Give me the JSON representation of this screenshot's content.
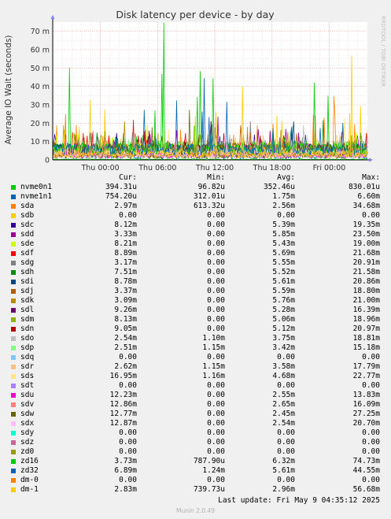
{
  "chart_data": {
    "type": "line",
    "title": "Disk latency per device - by day",
    "ylabel": "Average IO Wait (seconds)",
    "watermark": "RRDTOOL / TOBI OETIKER",
    "ylim": [
      0,
      75
    ],
    "y_ticks": [
      {
        "value": 0,
        "label": "0"
      },
      {
        "value": 10,
        "label": "10 m"
      },
      {
        "value": 20,
        "label": "20 m"
      },
      {
        "value": 30,
        "label": "30 m"
      },
      {
        "value": 40,
        "label": "40 m"
      },
      {
        "value": 50,
        "label": "50 m"
      },
      {
        "value": 60,
        "label": "60 m"
      },
      {
        "value": 70,
        "label": "70 m"
      }
    ],
    "x_ticks": [
      {
        "value": 5,
        "label": "Thu 00:00"
      },
      {
        "value": 11,
        "label": "Thu 06:00"
      },
      {
        "value": 17,
        "label": "Thu 12:00"
      },
      {
        "value": 23,
        "label": "Thu 18:00"
      },
      {
        "value": 29,
        "label": "Fri 00:00"
      }
    ],
    "xlim": [
      0,
      33
    ],
    "grid": true,
    "columns": [
      "Cur:",
      "Min:",
      "Avg:",
      "Max:"
    ],
    "series": [
      {
        "name": "nvme0n1",
        "color": "#00cc00",
        "cur": "394.31u",
        "min": "96.82u",
        "avg": "352.46u",
        "max": "830.01u"
      },
      {
        "name": "nvme1n1",
        "color": "#0066b3",
        "cur": "754.20u",
        "min": "312.01u",
        "avg": "1.75m",
        "max": "6.60m"
      },
      {
        "name": "sda",
        "color": "#ff8000",
        "cur": "2.97m",
        "min": "613.32u",
        "avg": "2.56m",
        "max": "34.68m"
      },
      {
        "name": "sdb",
        "color": "#ffcc00",
        "cur": "0.00",
        "min": "0.00",
        "avg": "0.00",
        "max": "0.00"
      },
      {
        "name": "sdc",
        "color": "#330099",
        "cur": "8.12m",
        "min": "0.00",
        "avg": "5.39m",
        "max": "19.35m"
      },
      {
        "name": "sdd",
        "color": "#990099",
        "cur": "3.33m",
        "min": "0.00",
        "avg": "5.85m",
        "max": "23.50m"
      },
      {
        "name": "sde",
        "color": "#ccff00",
        "cur": "8.21m",
        "min": "0.00",
        "avg": "5.43m",
        "max": "19.00m"
      },
      {
        "name": "sdf",
        "color": "#ff0000",
        "cur": "8.89m",
        "min": "0.00",
        "avg": "5.69m",
        "max": "21.68m"
      },
      {
        "name": "sdg",
        "color": "#808080",
        "cur": "3.17m",
        "min": "0.00",
        "avg": "5.55m",
        "max": "20.91m"
      },
      {
        "name": "sdh",
        "color": "#008f00",
        "cur": "7.51m",
        "min": "0.00",
        "avg": "5.52m",
        "max": "21.58m"
      },
      {
        "name": "sdi",
        "color": "#00487d",
        "cur": "8.78m",
        "min": "0.00",
        "avg": "5.61m",
        "max": "20.86m"
      },
      {
        "name": "sdj",
        "color": "#b35a00",
        "cur": "3.37m",
        "min": "0.00",
        "avg": "5.59m",
        "max": "18.80m"
      },
      {
        "name": "sdk",
        "color": "#b38f00",
        "cur": "3.09m",
        "min": "0.00",
        "avg": "5.76m",
        "max": "21.00m"
      },
      {
        "name": "sdl",
        "color": "#6b006b",
        "cur": "9.26m",
        "min": "0.00",
        "avg": "5.28m",
        "max": "16.39m"
      },
      {
        "name": "sdm",
        "color": "#8fb300",
        "cur": "8.13m",
        "min": "0.00",
        "avg": "5.06m",
        "max": "18.96m"
      },
      {
        "name": "sdn",
        "color": "#b30000",
        "cur": "9.05m",
        "min": "0.00",
        "avg": "5.12m",
        "max": "20.97m"
      },
      {
        "name": "sdo",
        "color": "#bebebe",
        "cur": "2.54m",
        "min": "1.10m",
        "avg": "3.75m",
        "max": "18.81m"
      },
      {
        "name": "sdp",
        "color": "#80ff80",
        "cur": "2.51m",
        "min": "1.15m",
        "avg": "3.42m",
        "max": "15.18m"
      },
      {
        "name": "sdq",
        "color": "#80c9ff",
        "cur": "0.00",
        "min": "0.00",
        "avg": "0.00",
        "max": "0.00"
      },
      {
        "name": "sdr",
        "color": "#ffc080",
        "cur": "2.62m",
        "min": "1.15m",
        "avg": "3.58m",
        "max": "17.79m"
      },
      {
        "name": "sds",
        "color": "#ffe680",
        "cur": "16.95m",
        "min": "1.16m",
        "avg": "4.68m",
        "max": "22.77m"
      },
      {
        "name": "sdt",
        "color": "#aa80ff",
        "cur": "0.00",
        "min": "0.00",
        "avg": "0.00",
        "max": "0.00"
      },
      {
        "name": "sdu",
        "color": "#ee00cc",
        "cur": "12.23m",
        "min": "0.00",
        "avg": "2.55m",
        "max": "13.83m"
      },
      {
        "name": "sdv",
        "color": "#ff8080",
        "cur": "12.86m",
        "min": "0.00",
        "avg": "2.65m",
        "max": "16.09m"
      },
      {
        "name": "sdw",
        "color": "#666600",
        "cur": "12.77m",
        "min": "0.00",
        "avg": "2.45m",
        "max": "27.25m"
      },
      {
        "name": "sdx",
        "color": "#ffbfff",
        "cur": "12.87m",
        "min": "0.00",
        "avg": "2.54m",
        "max": "20.70m"
      },
      {
        "name": "sdy",
        "color": "#00ffcc",
        "cur": "0.00",
        "min": "0.00",
        "avg": "0.00",
        "max": "0.00"
      },
      {
        "name": "sdz",
        "color": "#cc6699",
        "cur": "0.00",
        "min": "0.00",
        "avg": "0.00",
        "max": "0.00"
      },
      {
        "name": "zd0",
        "color": "#999900",
        "cur": "0.00",
        "min": "0.00",
        "avg": "0.00",
        "max": "0.00"
      },
      {
        "name": "zd16",
        "color": "#00cc00",
        "cur": "3.73m",
        "min": "787.90u",
        "avg": "6.32m",
        "max": "74.73m"
      },
      {
        "name": "zd32",
        "color": "#0066b3",
        "cur": "6.89m",
        "min": "1.24m",
        "avg": "5.61m",
        "max": "44.55m"
      },
      {
        "name": "dm-0",
        "color": "#ff8000",
        "cur": "0.00",
        "min": "0.00",
        "avg": "0.00",
        "max": "0.00"
      },
      {
        "name": "dm-1",
        "color": "#ffcc00",
        "cur": "2.83m",
        "min": "739.73u",
        "avg": "2.96m",
        "max": "56.68m"
      }
    ]
  },
  "footer": {
    "last_update": "Last update: Fri May  9 04:35:12 2025",
    "munin": "Munin 2.0.49"
  }
}
